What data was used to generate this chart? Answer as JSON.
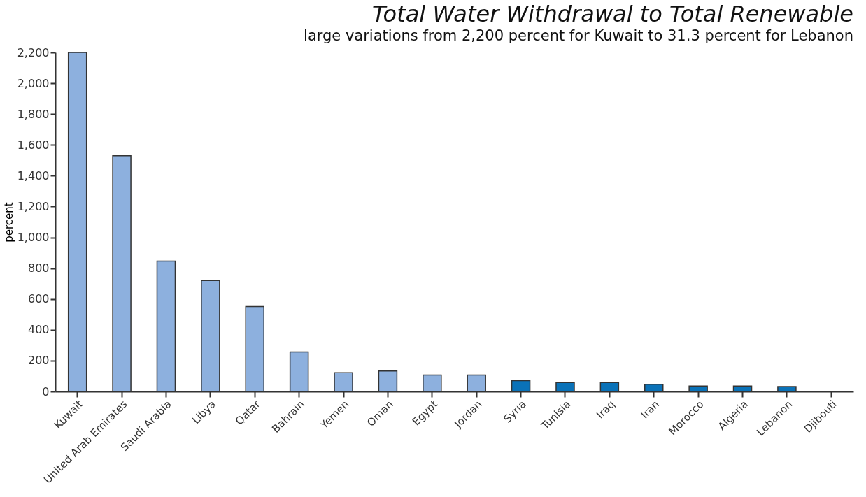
{
  "chart_data": {
    "type": "bar",
    "title": "Total Water Withdrawal to Total Renewable",
    "subtitle": "large variations from 2,200 percent for Kuwait to 31.3 percent for Lebanon",
    "ylabel": "percent",
    "categories": [
      "Kuwait",
      "United Arab Emirates",
      "Saudi Arabia",
      "Libya",
      "Qatar",
      "Bahrain",
      "Yemen",
      "Oman",
      "Egypt",
      "Jordan",
      "Syria",
      "Tunisia",
      "Iraq",
      "Iran",
      "Morocco",
      "Algeria",
      "Lebanon",
      "Djibouti"
    ],
    "values": [
      2200,
      1530,
      846,
      720,
      551,
      256,
      121,
      133,
      107,
      107,
      70,
      58,
      58,
      47,
      35,
      35,
      31.3,
      null
    ],
    "colors": [
      "#8db0de",
      "#8db0de",
      "#8db0de",
      "#8db0de",
      "#8db0de",
      "#8db0de",
      "#8db0de",
      "#8db0de",
      "#8db0de",
      "#8db0de",
      "#0a72b8",
      "#0a72b8",
      "#0a72b8",
      "#0a72b8",
      "#0a72b8",
      "#0a72b8",
      "#0a72b8",
      "#0a72b8"
    ],
    "ylim": [
      0,
      2200
    ],
    "yticks": [
      0,
      200,
      400,
      600,
      800,
      {
        "value": 1000,
        "label": "1,000"
      },
      {
        "value": 1200,
        "label": "1,200"
      },
      {
        "value": 1400,
        "label": "1,400"
      },
      {
        "value": 1600,
        "label": "1,600"
      },
      {
        "value": 1800,
        "label": "1,800"
      },
      {
        "value": 2000,
        "label": "2,000"
      },
      {
        "value": 2200,
        "label": "2,200"
      }
    ],
    "grid": false
  }
}
